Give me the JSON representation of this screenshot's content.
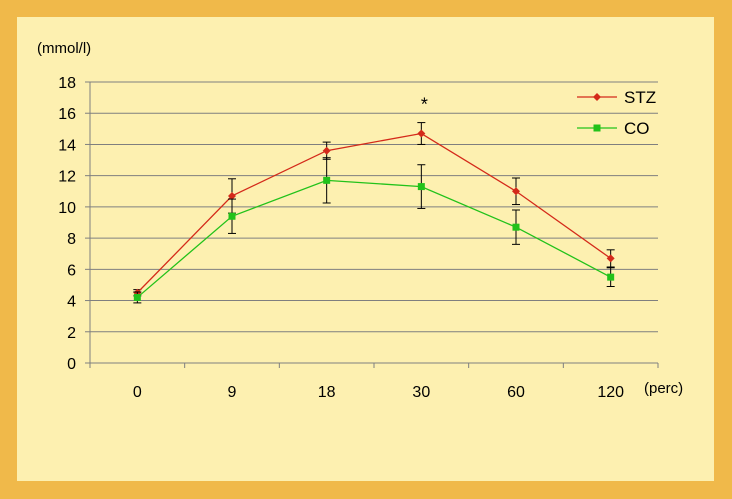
{
  "chart_data": {
    "type": "line",
    "ylabel": "(mmol/l)",
    "xlabel": "(perc)",
    "categories": [
      "0",
      "9",
      "18",
      "30",
      "60",
      "120"
    ],
    "ylim": [
      0,
      18
    ],
    "yticks": [
      0,
      2,
      4,
      6,
      8,
      10,
      12,
      14,
      16,
      18
    ],
    "grid": true,
    "legend_position": "top-right",
    "annotation": {
      "text": "*",
      "category": "30"
    },
    "series": [
      {
        "name": "STZ",
        "color": "#d42a1a",
        "marker": "diamond",
        "values": [
          4.5,
          10.7,
          13.6,
          14.7,
          11.0,
          6.7
        ],
        "error": [
          0.2,
          1.1,
          0.55,
          0.7,
          0.85,
          0.55
        ]
      },
      {
        "name": "CO",
        "color": "#22c21a",
        "marker": "square",
        "values": [
          4.2,
          9.4,
          11.7,
          11.3,
          8.7,
          5.5
        ],
        "error": [
          0.35,
          1.1,
          1.45,
          1.4,
          1.1,
          0.6
        ]
      }
    ]
  }
}
